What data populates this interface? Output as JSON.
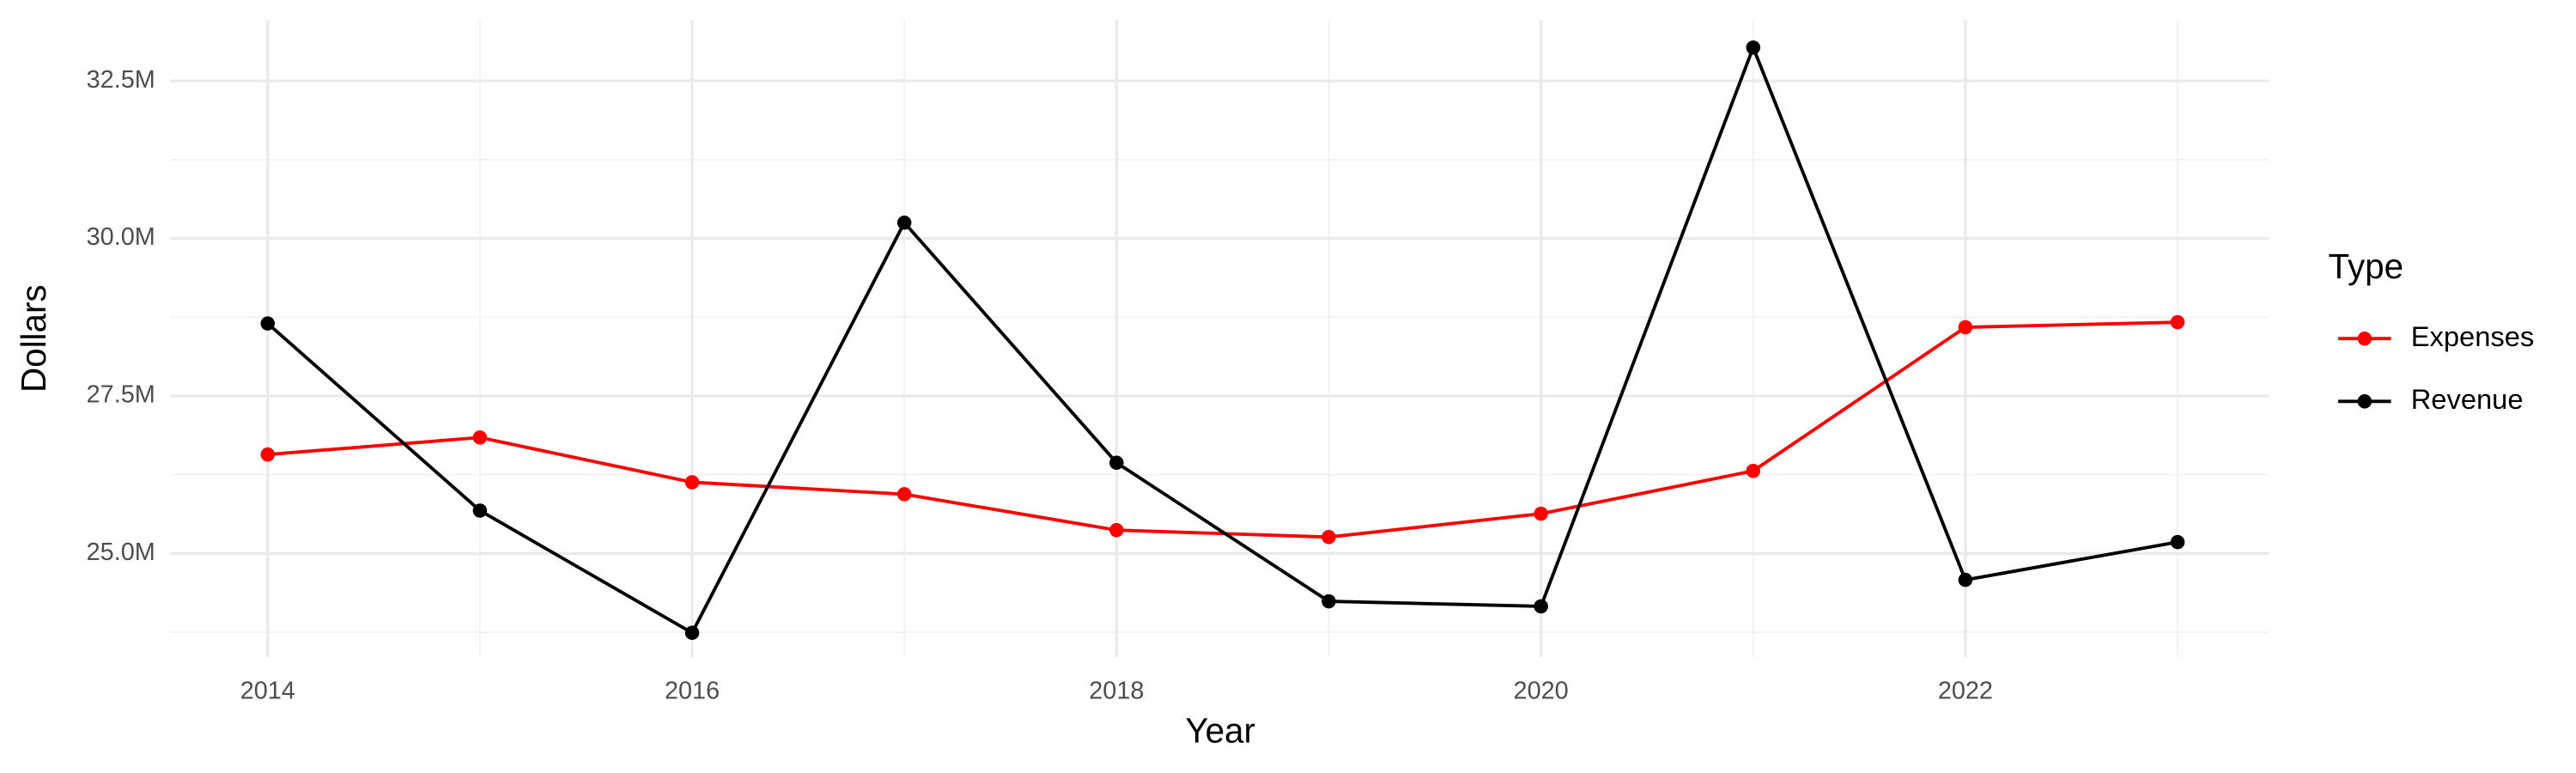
{
  "chart_data": {
    "type": "line",
    "x_label": "Year",
    "y_label": "Dollars",
    "legend_title": "Type",
    "legend_position": "right",
    "grid": true,
    "x": [
      2014,
      2015,
      2016,
      2017,
      2018,
      2019,
      2020,
      2021,
      2022,
      2023
    ],
    "series": [
      {
        "name": "Expenses",
        "color": "#ff0000",
        "values": [
          26570000,
          26840000,
          26130000,
          25940000,
          25370000,
          25260000,
          25630000,
          26310000,
          28590000,
          28670000
        ]
      },
      {
        "name": "Revenue",
        "color": "#000000",
        "values": [
          28650000,
          25680000,
          23740000,
          30250000,
          26440000,
          24240000,
          24160000,
          33030000,
          24580000,
          25180000
        ]
      }
    ],
    "xlim": [
      2013.54,
      2023.43
    ],
    "xticks": [
      2014,
      2016,
      2018,
      2020,
      2022
    ],
    "ylim": [
      23350000,
      33470000
    ],
    "yticks": [
      {
        "value": 25000000,
        "label": "25.0M"
      },
      {
        "value": 27500000,
        "label": "27.5M"
      },
      {
        "value": 30000000,
        "label": "30.0M"
      },
      {
        "value": 32500000,
        "label": "32.5M"
      }
    ]
  }
}
